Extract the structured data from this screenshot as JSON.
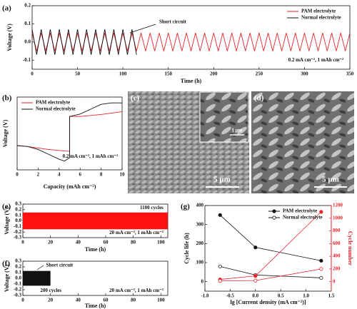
{
  "chart_data": [
    {
      "label": "(a)",
      "type": "line",
      "xlabel": "Time (h)",
      "ylabel": "Voltage (V)",
      "xlim": [
        0,
        350
      ],
      "xticks": [
        0,
        50,
        100,
        150,
        200,
        250,
        300,
        350
      ],
      "ylim": [
        -0.15,
        0.2
      ],
      "yticks": [
        0.2,
        0.1,
        {
          "value": 0,
          "label": "0.0"
        },
        -0.1
      ],
      "legend": "upper right",
      "annotations": [
        "Short circuit",
        "0.2 mA cm⁻², 1 mAh cm⁻²"
      ],
      "series": [
        {
          "name": "PAM electrolyte",
          "color": "#e8232a",
          "x": [
            0,
            5,
            10,
            15,
            20,
            25,
            30,
            35,
            40,
            45,
            50,
            55,
            60,
            65,
            70,
            75,
            80,
            85,
            90,
            95,
            100,
            105,
            110,
            115,
            120,
            125,
            130,
            135,
            140,
            145,
            150,
            155,
            160,
            165,
            170,
            175,
            180,
            185,
            190,
            195,
            200,
            205,
            210,
            215,
            220,
            225,
            230,
            235,
            240,
            245,
            250,
            255,
            260,
            265,
            270,
            275,
            280,
            285,
            290,
            295,
            300,
            305,
            310,
            315,
            320,
            325,
            330,
            335,
            340,
            345,
            350
          ],
          "values": [
            0.05,
            -0.05,
            0.05,
            -0.05,
            0.05,
            -0.05,
            0.05,
            -0.05,
            0.05,
            -0.05,
            0.05,
            -0.05,
            0.05,
            -0.05,
            0.05,
            -0.05,
            0.05,
            -0.05,
            0.05,
            -0.05,
            0.05,
            -0.05,
            0.05,
            -0.05,
            0.05,
            -0.05,
            0.05,
            -0.05,
            0.05,
            -0.05,
            0.05,
            -0.05,
            0.05,
            -0.05,
            0.05,
            -0.05,
            0.05,
            -0.05,
            0.05,
            -0.05,
            0.05,
            -0.05,
            0.05,
            -0.05,
            0.05,
            -0.05,
            0.05,
            -0.05,
            0.05,
            -0.05,
            0.05,
            -0.05,
            0.05,
            -0.05,
            0.05,
            -0.05,
            0.05,
            -0.05,
            0.05,
            -0.05,
            0.05,
            -0.05,
            0.05,
            -0.05,
            0.05,
            -0.05,
            0.05,
            -0.05,
            0.05,
            -0.05,
            0.05
          ]
        },
        {
          "name": "Normal electrolyte",
          "color": "#111111",
          "x": [
            0,
            5,
            10,
            15,
            20,
            25,
            30,
            35,
            40,
            45,
            50,
            55,
            60,
            65,
            70,
            75,
            80,
            85,
            90,
            95,
            100,
            105,
            110,
            115
          ],
          "values": [
            0.07,
            -0.07,
            0.07,
            -0.07,
            0.07,
            -0.07,
            0.07,
            -0.07,
            0.07,
            -0.07,
            0.07,
            -0.07,
            0.07,
            -0.07,
            0.07,
            -0.07,
            0.07,
            -0.07,
            0.07,
            -0.07,
            0.07,
            -0.07,
            0.07,
            -0.07
          ]
        }
      ]
    },
    {
      "label": "(b)",
      "type": "line",
      "xlabel": "Capacity (mAh cm⁻²)",
      "ylabel": "Voltage (V)",
      "xlim": [
        0,
        10
      ],
      "xticks": [
        0,
        2,
        4,
        6,
        8,
        10
      ],
      "ylim": [
        -0.08,
        0.07
      ],
      "legend": "upper left",
      "annotations": [
        "0.2 mA cm⁻², 1 mAh cm⁻²"
      ],
      "series": [
        {
          "name": "PAM electrolyte",
          "color": "#e8232a",
          "x": [
            0,
            1,
            2,
            3,
            4,
            5,
            5,
            6,
            7,
            8,
            9,
            10
          ],
          "values": [
            -0.03,
            -0.032,
            -0.035,
            -0.038,
            -0.04,
            -0.042,
            0.03,
            0.03,
            0.032,
            0.034,
            0.037,
            0.04
          ]
        },
        {
          "name": "Normal electrolyte",
          "color": "#111111",
          "x": [
            0,
            1,
            2,
            3,
            4,
            4.5,
            5,
            5,
            6,
            7,
            8,
            9,
            10
          ],
          "values": [
            -0.03,
            -0.032,
            -0.038,
            -0.048,
            -0.058,
            -0.062,
            -0.055,
            0.03,
            0.035,
            0.045,
            0.055,
            0.058,
            0.058
          ]
        }
      ]
    },
    {
      "label": "(e)",
      "type": "band",
      "xlabel": "Time (h)",
      "ylabel": "Voltage (V)",
      "xlim": [
        0,
        105
      ],
      "xticks": [
        0,
        20,
        40,
        60,
        80,
        100
      ],
      "ylim": [
        -0.3,
        0.3
      ],
      "yticks": [
        0.3,
        0.2,
        0.1,
        {
          "value": 0,
          "label": "0.0"
        },
        -0.1,
        -0.2,
        -0.3
      ],
      "annotations": [
        "1100 cycles",
        "20 mA cm⁻², 1 mAh cm⁻²"
      ],
      "series": [
        {
          "color": "#ff1010",
          "x": [
            0,
            105
          ],
          "upper": [
            0.15,
            0.15
          ],
          "lower": [
            -0.15,
            -0.15
          ]
        }
      ]
    },
    {
      "label": "(f)",
      "type": "band",
      "xlabel": "Time (h)",
      "ylabel": "Voltage (V)",
      "xlim": [
        0,
        105
      ],
      "xticks": [
        0,
        20,
        40,
        60,
        80,
        100
      ],
      "ylim": [
        -0.3,
        0.3
      ],
      "yticks": [
        0.3,
        0.2,
        0.1,
        {
          "value": 0,
          "label": "0.0"
        },
        -0.1,
        -0.2,
        -0.3
      ],
      "annotations": [
        "Short circuit",
        "200 cycles",
        "20 mA cm⁻², 1 mAh cm⁻²"
      ],
      "series": [
        {
          "color": "#111111",
          "x": [
            0,
            20
          ],
          "upper": [
            0.13,
            0.13
          ],
          "lower": [
            -0.13,
            -0.13
          ]
        }
      ]
    },
    {
      "label": "(g)",
      "type": "line",
      "xlabel": "lg [Current density (mA cm⁻²)]",
      "ylabel": "Cycle life (h)",
      "y2label": "Cycle number",
      "y2_color": "#e8232a",
      "xlim": [
        -1,
        1.5
      ],
      "xticks": [
        {
          "value": -1,
          "label": "-1.0"
        },
        -0.5,
        {
          "value": 0,
          "label": "0.0"
        },
        0.5,
        {
          "value": 1,
          "label": "1.0"
        },
        1.5
      ],
      "ylim": [
        -50,
        400
      ],
      "yticks": [
        0,
        100,
        200,
        300,
        400
      ],
      "y2lim": [
        -150,
        1200
      ],
      "y2ticks": [
        0,
        200,
        400,
        600,
        800,
        1000,
        1200
      ],
      "legend": "upper right",
      "x": [
        -0.7,
        0,
        1.3
      ],
      "series": [
        {
          "name": "PAM electrolyte",
          "color": "#111111",
          "marker": "filled",
          "values": [
            350,
            180,
            110
          ]
        },
        {
          "name": "Normal electrolyte",
          "color": "#111111",
          "marker": "open",
          "values": [
            80,
            35,
            20
          ]
        },
        {
          "color": "#e8232a",
          "marker": "filled",
          "axis": "y2",
          "values": [
            35,
            90,
            1100
          ]
        },
        {
          "color": "#e8232a",
          "marker": "open",
          "axis": "y2",
          "values": [
            12,
            17,
            200
          ]
        }
      ]
    }
  ],
  "images": [
    {
      "label": "(c)",
      "scale_bar": "5 μm",
      "inset_scale_bar": "1 μm"
    },
    {
      "label": "(d)",
      "scale_bar": "5 μm"
    }
  ]
}
